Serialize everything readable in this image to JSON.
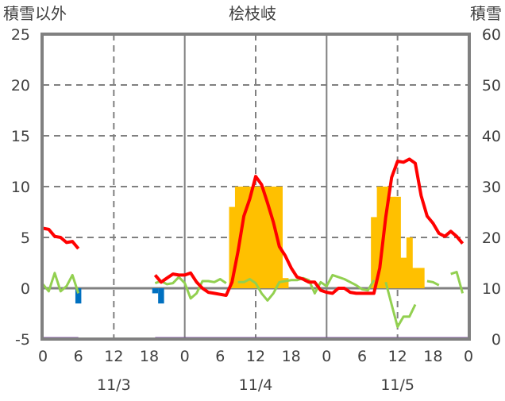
{
  "chart_data": {
    "type": "bar+line",
    "title": "桧枝岐",
    "left_axis_label": "積雪以外",
    "right_axis_label": "積雪",
    "left_ylim": [
      -5,
      25
    ],
    "left_ticks": [
      25,
      20,
      15,
      10,
      5,
      0,
      -5
    ],
    "right_ylim": [
      0,
      60
    ],
    "right_ticks": [
      60,
      50,
      40,
      30,
      20,
      10,
      0
    ],
    "x_range_hours": [
      0,
      72
    ],
    "x_tick_labels": [
      "0",
      "6",
      "12",
      "18",
      "0",
      "6",
      "12",
      "18",
      "0",
      "6",
      "12",
      "18",
      "0"
    ],
    "dates": [
      "11/3",
      "11/4",
      "11/5"
    ],
    "grid": true,
    "colors": {
      "yellow_bars": "#FFC000",
      "blue_bars": "#0070C0",
      "red_line": "#FF0000",
      "green_line": "#92D050",
      "purple_line": "#7030A0",
      "frame": "#808080"
    },
    "yellow_bars": [
      [
        32,
        8
      ],
      [
        33,
        10
      ],
      [
        34,
        10
      ],
      [
        35,
        10
      ],
      [
        36,
        10
      ],
      [
        37,
        10
      ],
      [
        38,
        10
      ],
      [
        39,
        10
      ],
      [
        40,
        10
      ],
      [
        41,
        1
      ],
      [
        56,
        7
      ],
      [
        57,
        10
      ],
      [
        58,
        10
      ],
      [
        59,
        9
      ],
      [
        60,
        9
      ],
      [
        61,
        3
      ],
      [
        62,
        5
      ],
      [
        63,
        2
      ],
      [
        64,
        2
      ]
    ],
    "blue_bars": [
      [
        6,
        -1.5
      ],
      [
        19,
        -0.5
      ],
      [
        20,
        -1.5
      ]
    ],
    "red_line": [
      5.9,
      5.8,
      5.1,
      5.0,
      4.5,
      4.6,
      3.9,
      null,
      null,
      null,
      null,
      null,
      null,
      null,
      null,
      null,
      null,
      null,
      null,
      1.3,
      0.6,
      1.0,
      1.4,
      1.3,
      1.3,
      1.5,
      0.6,
      0.0,
      -0.4,
      -0.5,
      -0.6,
      -0.7,
      0.6,
      3.6,
      7.1,
      8.8,
      11.0,
      10.2,
      8.4,
      6.5,
      4.1,
      3.2,
      2.0,
      1.1,
      0.9,
      0.6,
      0.6,
      -0.2,
      -0.4,
      -0.5,
      0.0,
      0.0,
      -0.4,
      -0.5,
      -0.5,
      -0.5,
      -0.5,
      2.0,
      7.0,
      10.9,
      12.5,
      12.4,
      12.7,
      12.3,
      9.1,
      7.1,
      6.4,
      5.4,
      5.1,
      5.6,
      5.1,
      4.4
    ],
    "green_line": [
      0.4,
      -0.3,
      1.5,
      -0.3,
      0.2,
      1.3,
      -0.5,
      null,
      null,
      null,
      null,
      null,
      null,
      null,
      null,
      null,
      null,
      null,
      null,
      0.5,
      0.7,
      0.4,
      0.5,
      1.1,
      0.5,
      -1.0,
      -0.5,
      0.7,
      0.7,
      0.6,
      0.9,
      0.5,
      null,
      0.6,
      0.6,
      0.9,
      0.5,
      -0.5,
      -1.2,
      -0.5,
      0.6,
      0.7,
      0.8,
      0.8,
      1.0,
      0.8,
      -0.5,
      0.6,
      0.2,
      1.3,
      1.1,
      0.9,
      0.6,
      0.3,
      -0.1,
      -0.2,
      0.8,
      null,
      0.6,
      -1.6,
      -3.8,
      -2.8,
      -2.8,
      -1.6,
      null,
      0.7,
      0.6,
      0.3,
      null,
      1.4,
      1.6,
      -0.5
    ],
    "purple_line": [
      [
        0,
        6,
        -5
      ],
      [
        19,
        72,
        -5
      ]
    ]
  }
}
